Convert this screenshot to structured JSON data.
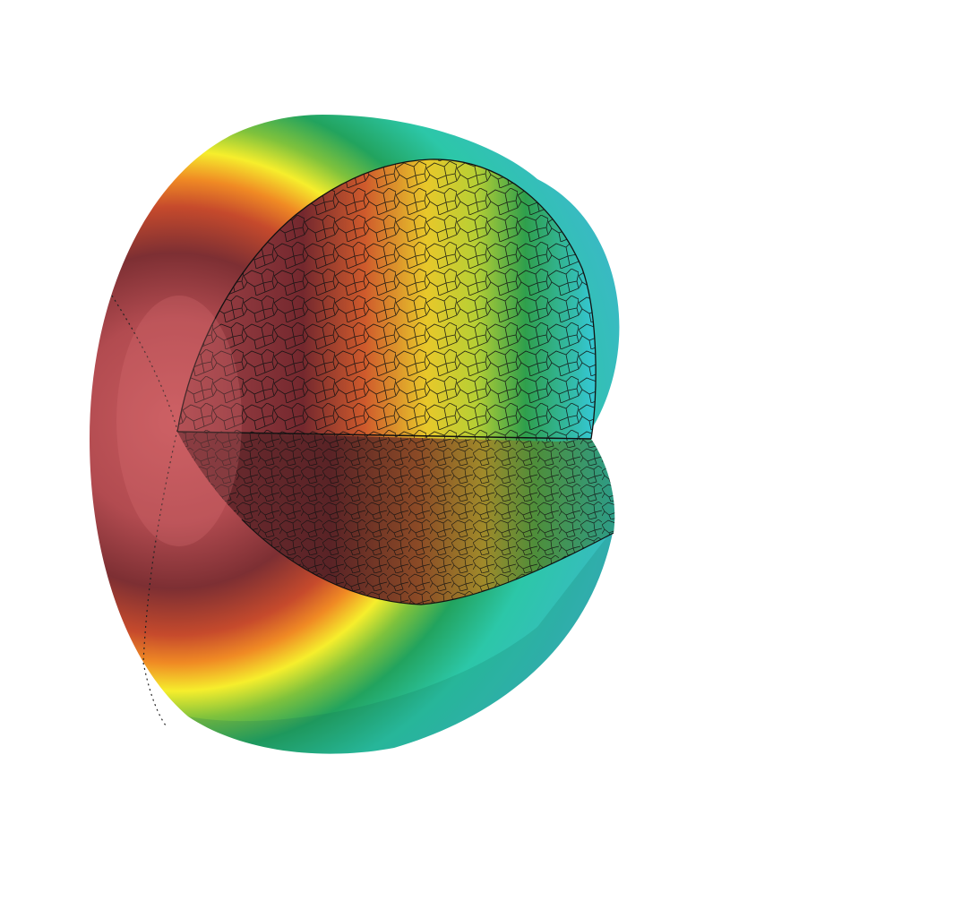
{
  "scene": {
    "background": "#ffffff",
    "colormap": [
      "#7d2f33",
      "#c75a5e",
      "#e86a2a",
      "#f6a323",
      "#f2ee2c",
      "#9cc83a",
      "#2fa35a",
      "#2cc7a8",
      "#34c6cf"
    ],
    "mesh_line_color": "#111111",
    "object": "cutaway-sphere"
  }
}
